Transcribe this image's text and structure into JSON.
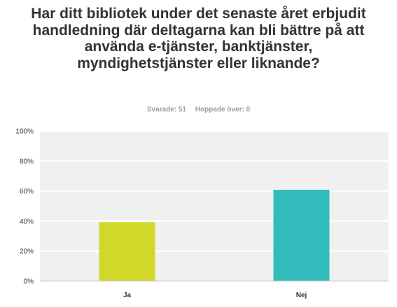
{
  "title": "Har ditt bibliotek under det senaste året erbjudit handledning där deltagarna kan bli bättre på att använda e-tjänster, banktjänster, myndighetstjänster eller liknande?",
  "answered_label": "Svarade: 51",
  "skipped_label": "Hoppade över: 0",
  "chart_data": {
    "type": "bar",
    "categories": [
      "Ja",
      "Nej"
    ],
    "values": [
      39.2,
      60.8
    ],
    "colors": [
      "#d1d82a",
      "#33bcbc"
    ],
    "ylim": [
      0,
      100
    ],
    "yticks": [
      0,
      20,
      40,
      60,
      80,
      100
    ],
    "ytick_labels": [
      "0%",
      "20%",
      "40%",
      "60%",
      "80%",
      "100%"
    ],
    "grid": true,
    "xlabel": "",
    "ylabel": ""
  }
}
